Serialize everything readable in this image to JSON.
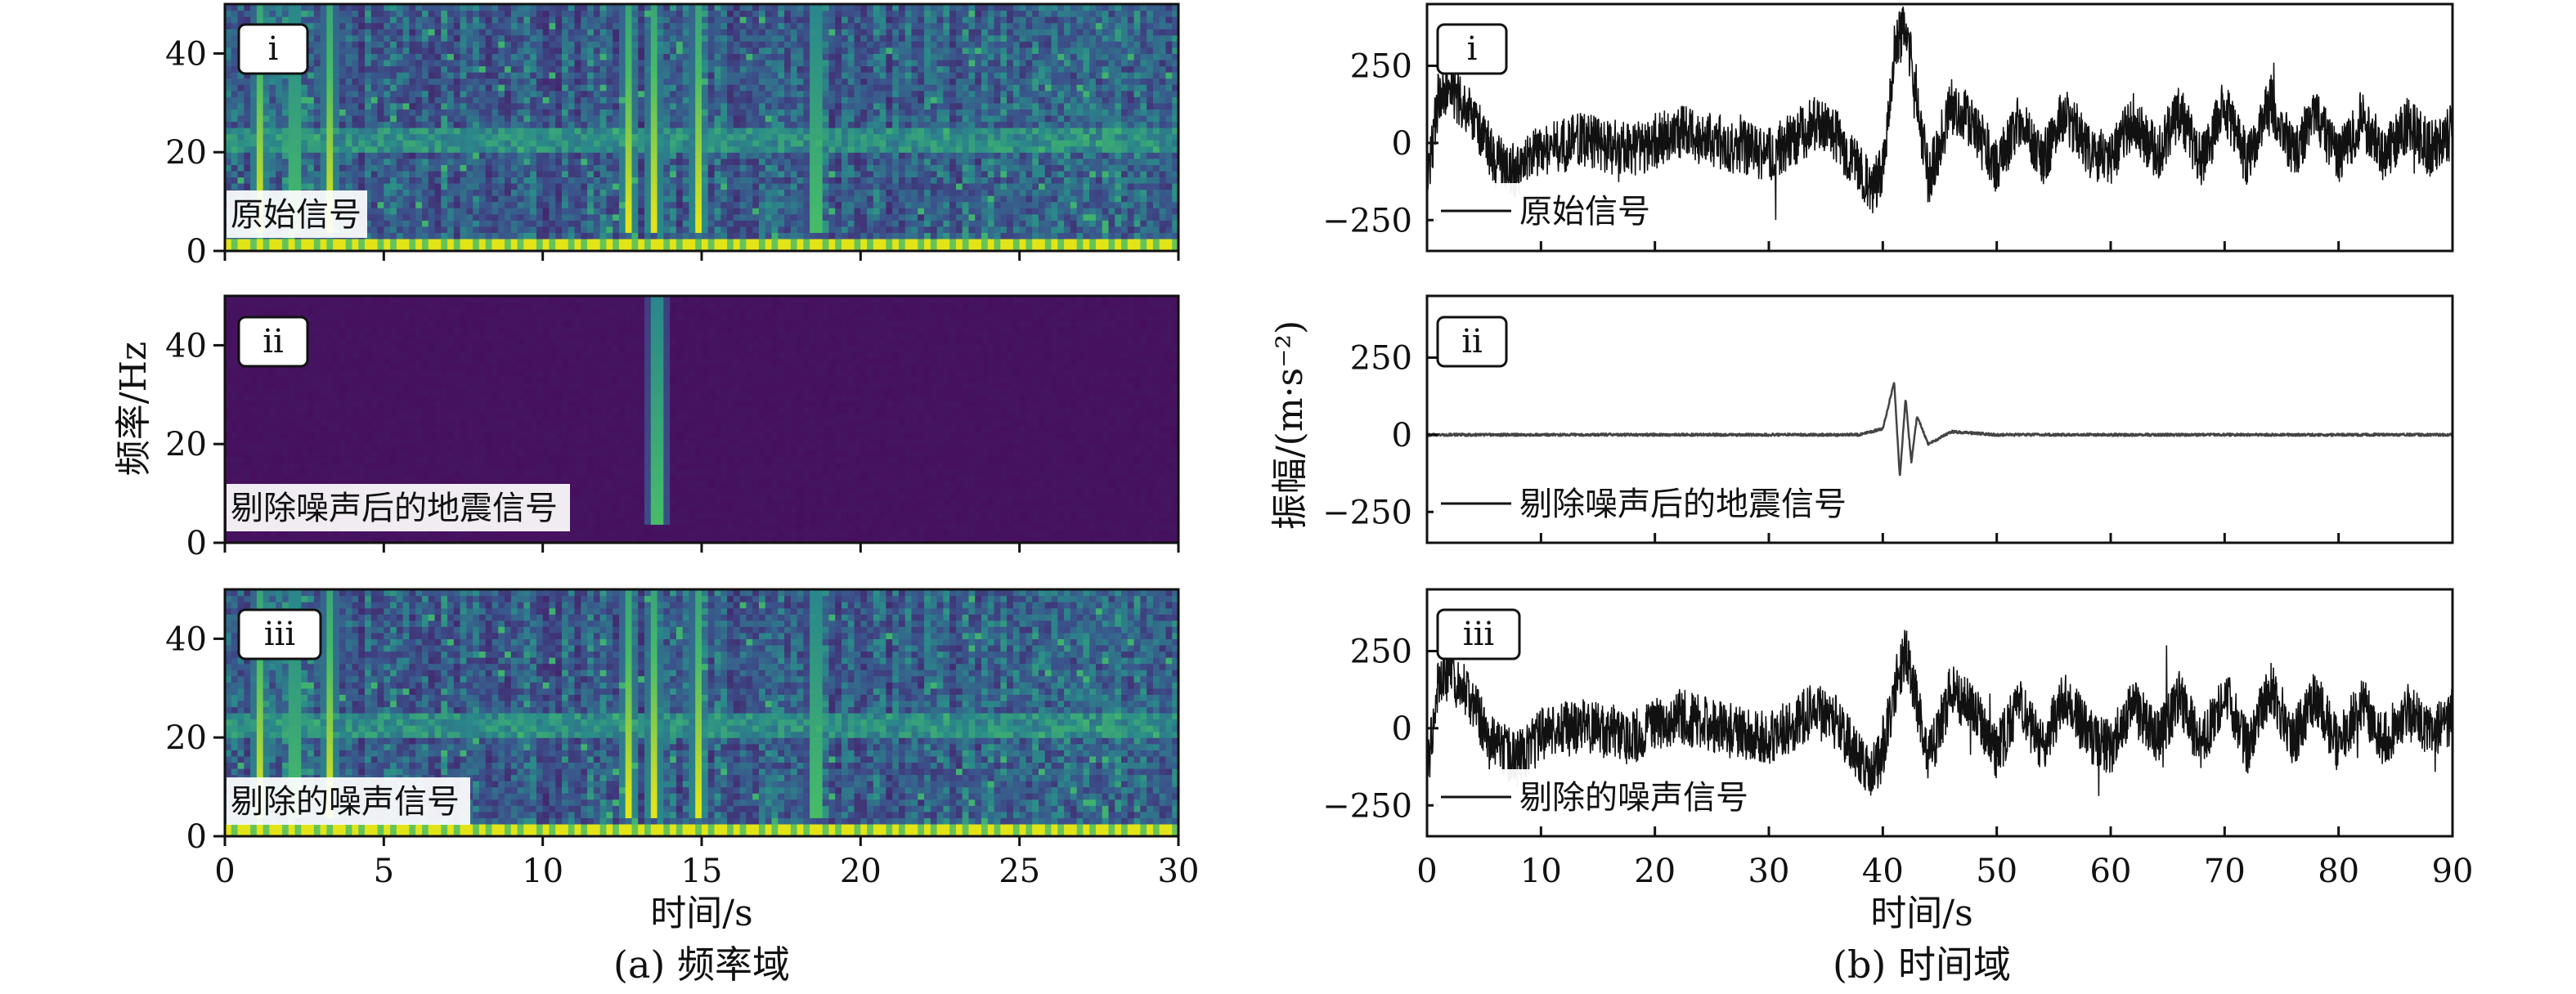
{
  "figure": {
    "caption_a": "(a) 频率域",
    "caption_b": "(b) 时间域"
  },
  "colors": {
    "viridis_low": "#46105e",
    "viridis_mid": "#2a8a8a",
    "viridis_high": "#e3e418",
    "trace": "#111111"
  },
  "chart_data": [
    {
      "type": "heatmap",
      "panel": "a",
      "xlabel": "时间/s",
      "ylabel": "频率/Hz",
      "xlim": [
        0,
        30
      ],
      "ylim": [
        0,
        50
      ],
      "xticks": [
        0,
        5,
        10,
        15,
        20,
        25,
        30
      ],
      "yticks": [
        0,
        20,
        40
      ],
      "colormap": "viridis",
      "subplots": [
        {
          "tag": "i",
          "label": "原始信号",
          "energy_bands_hz": [
            [
              0,
              3,
              1.0
            ],
            [
              20,
              25,
              0.55
            ]
          ],
          "strong_events_s": [
            1.1,
            2.2,
            3.3,
            12.7,
            13.5,
            14.9,
            18.6
          ],
          "background_level": 0.35
        },
        {
          "tag": "ii",
          "label": "剔除噪声后的地震信号",
          "energy_bands_hz": [],
          "strong_events_s": [
            13.6
          ],
          "background_level": 0.0
        },
        {
          "tag": "iii",
          "label": "剔除的噪声信号",
          "energy_bands_hz": [
            [
              0,
              3,
              1.0
            ],
            [
              20,
              25,
              0.55
            ]
          ],
          "strong_events_s": [
            1.1,
            2.2,
            3.3,
            12.7,
            13.5,
            14.9,
            18.6
          ],
          "background_level": 0.35
        }
      ]
    },
    {
      "type": "line",
      "panel": "b",
      "xlabel": "时间/s",
      "ylabel": "振幅/(m·s⁻²)",
      "xlim": [
        0,
        90
      ],
      "ylim": [
        -350,
        450
      ],
      "xticks": [
        0,
        10,
        20,
        30,
        40,
        50,
        60,
        70,
        80,
        90
      ],
      "yticks": [
        250,
        0,
        -250
      ],
      "subplots": [
        {
          "tag": "i",
          "label": "原始信号",
          "series": [
            {
              "name": "原始信号",
              "x": [
                0,
                1,
                2,
                4,
                6,
                8,
                10,
                14,
                18,
                22,
                26,
                30,
                34,
                36,
                38,
                39,
                40,
                41,
                42,
                43,
                44,
                46,
                48,
                50,
                52,
                54,
                56,
                58,
                60,
                62,
                64,
                66,
                68,
                70,
                72,
                74,
                76,
                78,
                80,
                82,
                84,
                86,
                88,
                90
              ],
              "y": [
                -150,
                150,
                180,
                80,
                -60,
                -100,
                -20,
                10,
                -30,
                40,
                0,
                -40,
                60,
                20,
                -100,
                -150,
                -80,
                300,
                380,
                150,
                -120,
                120,
                60,
                -80,
                80,
                -60,
                100,
                -20,
                -60,
                80,
                -40,
                100,
                -60,
                120,
                -60,
                140,
                -40,
                100,
                -60,
                80,
                -40,
                60,
                -20,
                40
              ],
              "noise": 90
            }
          ]
        },
        {
          "tag": "ii",
          "label": "剔除噪声后的地震信号",
          "series": [
            {
              "name": "剔除噪声后的地震信号",
              "x": [
                0,
                10,
                20,
                30,
                38,
                40,
                41,
                41.5,
                42,
                42.5,
                43,
                44,
                46,
                50,
                60,
                70,
                80,
                90
              ],
              "y": [
                0,
                0,
                0,
                0,
                0,
                20,
                170,
                -140,
                120,
                -90,
                60,
                -30,
                10,
                0,
                0,
                0,
                0,
                0
              ],
              "noise": 4
            }
          ]
        },
        {
          "tag": "iii",
          "label": "剔除的噪声信号",
          "series": [
            {
              "name": "剔除的噪声信号",
              "x": [
                0,
                1,
                2,
                4,
                6,
                8,
                10,
                14,
                18,
                22,
                26,
                30,
                34,
                36,
                38,
                39,
                40,
                41,
                42,
                43,
                44,
                46,
                48,
                50,
                52,
                54,
                56,
                58,
                60,
                62,
                64,
                66,
                68,
                70,
                72,
                74,
                76,
                78,
                80,
                82,
                84,
                86,
                88,
                90
              ],
              "y": [
                -150,
                150,
                180,
                80,
                -60,
                -100,
                -20,
                10,
                -30,
                40,
                0,
                -40,
                60,
                20,
                -100,
                -150,
                -80,
                120,
                250,
                80,
                -100,
                120,
                60,
                -80,
                80,
                -60,
                100,
                -20,
                -60,
                80,
                -40,
                100,
                -60,
                120,
                -60,
                140,
                -40,
                100,
                -60,
                80,
                -40,
                60,
                -20,
                40
              ],
              "noise": 90
            }
          ]
        }
      ]
    }
  ]
}
